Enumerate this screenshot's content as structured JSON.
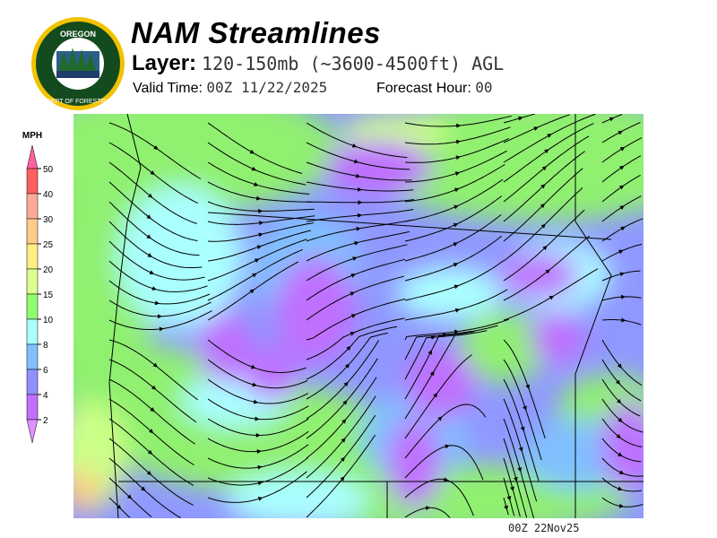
{
  "header": {
    "title": "NAM Streamlines",
    "layer_label": "Layer:",
    "layer_value": "120-150mb (~3600-4500ft) AGL",
    "valid_label": "Valid Time:",
    "valid_value": "00Z 11/22/2025",
    "forecast_hour_label": "Forecast Hour:",
    "forecast_hour_value": "00"
  },
  "logo": {
    "text_top": "OREGON",
    "text_bottom": "DEPARTMENT OF FORESTRY"
  },
  "legend": {
    "unit": "MPH",
    "ticks": [
      "50",
      "40",
      "30",
      "25",
      "20",
      "15",
      "10",
      "8",
      "6",
      "4",
      "2"
    ],
    "colors": [
      "#ff60a0",
      "#ff6060",
      "#ffaa99",
      "#ffcc88",
      "#ffee80",
      "#ddff90",
      "#90ff70",
      "#aaffff",
      "#80c0ff",
      "#9090ff",
      "#c070ff",
      "#e090ff"
    ]
  },
  "map": {
    "colors": {
      "green": "#90f070",
      "lightgreen": "#ccff88",
      "cyan": "#aaffff",
      "blue": "#80c0ff",
      "periwinkle": "#9098ff",
      "purple": "#c070ff",
      "orange": "#ffcc88"
    }
  },
  "footer": {
    "stamp": "00Z 22Nov25"
  }
}
